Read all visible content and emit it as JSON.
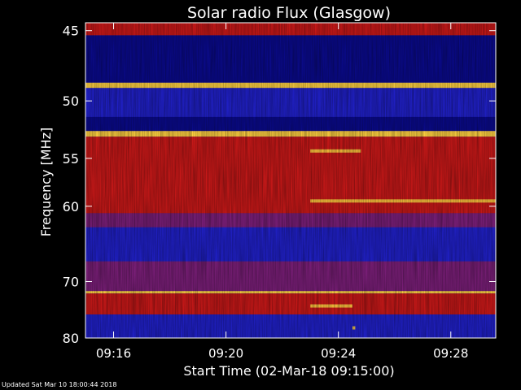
{
  "chart_data": {
    "type": "heatmap",
    "title": "Solar radio Flux (Glasgow)",
    "xlabel": "Start Time (02-Mar-18 09:15:00)",
    "ylabel": "Frequency [MHz]",
    "x_ticks": [
      "09:16",
      "09:20",
      "09:24",
      "09:28"
    ],
    "x_tick_minutes": [
      1,
      5,
      9,
      13
    ],
    "xlim_minutes": [
      0,
      14.6
    ],
    "y_ticks": [
      45,
      50,
      55,
      60,
      70,
      80
    ],
    "ylim": [
      44.5,
      80
    ],
    "y_scale": "reciprocal",
    "grid": false,
    "colors": {
      "background": "#000000",
      "axis": "#ffffff",
      "low": "#2020c8",
      "mid": "#c81818",
      "high": "#ffd040"
    },
    "bands": [
      {
        "from": 44.5,
        "to": 45.3,
        "level": "mid"
      },
      {
        "from": 45.3,
        "to": 48.6,
        "level": "low-dark"
      },
      {
        "from": 48.6,
        "to": 49.0,
        "level": "high"
      },
      {
        "from": 49.0,
        "to": 51.3,
        "level": "low"
      },
      {
        "from": 51.3,
        "to": 52.5,
        "level": "low-dark"
      },
      {
        "from": 52.5,
        "to": 53.0,
        "level": "high"
      },
      {
        "from": 53.0,
        "to": 60.8,
        "level": "mid"
      },
      {
        "from": 60.8,
        "to": 62.5,
        "level": "mixed"
      },
      {
        "from": 62.5,
        "to": 67.0,
        "level": "low"
      },
      {
        "from": 67.0,
        "to": 71.5,
        "level": "mixed"
      },
      {
        "from": 71.5,
        "to": 71.9,
        "level": "high"
      },
      {
        "from": 71.9,
        "to": 75.5,
        "level": "mid"
      },
      {
        "from": 75.5,
        "to": 80.0,
        "level": "low"
      }
    ],
    "features": [
      {
        "minute_start": 8.0,
        "minute_end": 14.6,
        "freq": 59.4,
        "level": "high"
      },
      {
        "minute_start": 8.0,
        "minute_end": 9.8,
        "freq": 54.3,
        "level": "high"
      },
      {
        "minute_start": 8.0,
        "minute_end": 9.5,
        "freq": 74.0,
        "level": "high"
      },
      {
        "minute_start": 9.5,
        "minute_end": 9.6,
        "freq": 78.0,
        "level": "high"
      }
    ]
  },
  "footer": {
    "updated": "Updated Sat Mar 10 18:00:44 2018"
  }
}
